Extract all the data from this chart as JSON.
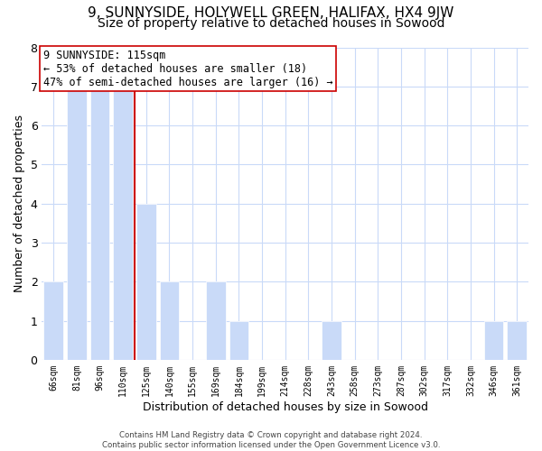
{
  "title1": "9, SUNNYSIDE, HOLYWELL GREEN, HALIFAX, HX4 9JW",
  "title2": "Size of property relative to detached houses in Sowood",
  "xlabel": "Distribution of detached houses by size in Sowood",
  "ylabel": "Number of detached properties",
  "categories": [
    "66sqm",
    "81sqm",
    "96sqm",
    "110sqm",
    "125sqm",
    "140sqm",
    "155sqm",
    "169sqm",
    "184sqm",
    "199sqm",
    "214sqm",
    "228sqm",
    "243sqm",
    "258sqm",
    "273sqm",
    "287sqm",
    "302sqm",
    "317sqm",
    "332sqm",
    "346sqm",
    "361sqm"
  ],
  "values": [
    2,
    7,
    7,
    7,
    4,
    2,
    0,
    2,
    1,
    0,
    0,
    0,
    1,
    0,
    0,
    0,
    0,
    0,
    0,
    1,
    1
  ],
  "bar_color": "#c9daf8",
  "vline_index": 3,
  "vline_color": "#cc0000",
  "annotation_title": "9 SUNNYSIDE: 115sqm",
  "annotation_line1": "← 53% of detached houses are smaller (18)",
  "annotation_line2": "47% of semi-detached houses are larger (16) →",
  "annotation_box_color": "#ffffff",
  "annotation_box_edge": "#cc0000",
  "ylim": [
    0,
    8
  ],
  "yticks": [
    0,
    1,
    2,
    3,
    4,
    5,
    6,
    7,
    8
  ],
  "footer1": "Contains HM Land Registry data © Crown copyright and database right 2024.",
  "footer2": "Contains public sector information licensed under the Open Government Licence v3.0.",
  "bg_color": "#ffffff",
  "grid_color": "#c9daf8",
  "title1_fontsize": 11,
  "title2_fontsize": 10
}
